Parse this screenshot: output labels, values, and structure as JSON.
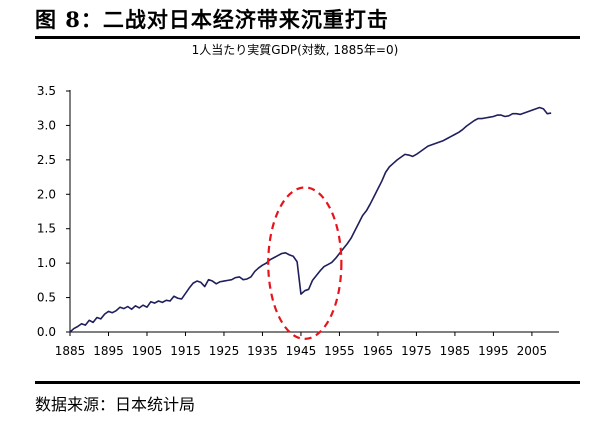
{
  "figure_title": "图 8：二战对日本经济带来沉重打击",
  "source": "数据来源：日本统计局",
  "colors": {
    "line": "#1f1f5c",
    "axis": "#000000",
    "highlight": "#e8141c"
  },
  "chart_data": {
    "type": "line",
    "title": "1人当たり実質GDP(対数, 1885年=0)",
    "xlabel": "",
    "ylabel": "",
    "xlim": [
      1885,
      2011
    ],
    "ylim": [
      0,
      3.5
    ],
    "x_ticks": [
      1885,
      1895,
      1905,
      1915,
      1925,
      1935,
      1945,
      1955,
      1965,
      1975,
      1985,
      1995,
      2005
    ],
    "y_ticks": [
      "0.0",
      "0.5",
      "1.0",
      "1.5",
      "2.0",
      "2.5",
      "3.0",
      "3.5"
    ],
    "grid": false,
    "annotation": {
      "type": "dashed-ellipse",
      "around_years": "1937-1955",
      "color": "red"
    },
    "series": [
      {
        "x": [
          1885,
          1886,
          1887,
          1888,
          1889,
          1890,
          1891,
          1892,
          1893,
          1894,
          1895,
          1896,
          1897,
          1898,
          1899,
          1900,
          1901,
          1902,
          1903,
          1904,
          1905,
          1906,
          1907,
          1908,
          1909,
          1910,
          1911,
          1912,
          1913,
          1914,
          1915,
          1916,
          1917,
          1918,
          1919,
          1920,
          1921,
          1922,
          1923,
          1924,
          1925,
          1926,
          1927,
          1928,
          1929,
          1930,
          1931,
          1932,
          1933,
          1934,
          1935,
          1936,
          1937,
          1938,
          1939,
          1940,
          1941,
          1942,
          1943,
          1944,
          1945,
          1946,
          1947,
          1948,
          1949,
          1950,
          1951,
          1952,
          1953,
          1954,
          1955,
          1956,
          1957,
          1958,
          1959,
          1960,
          1961,
          1962,
          1963,
          1964,
          1965,
          1966,
          1967,
          1968,
          1969,
          1970,
          1971,
          1972,
          1973,
          1974,
          1975,
          1976,
          1977,
          1978,
          1979,
          1980,
          1981,
          1982,
          1983,
          1984,
          1985,
          1986,
          1987,
          1988,
          1989,
          1990,
          1991,
          1992,
          1993,
          1994,
          1995,
          1996,
          1997,
          1998,
          1999,
          2000,
          2001,
          2002,
          2003,
          2004,
          2005,
          2006,
          2007,
          2008,
          2009,
          2010
        ],
        "values": [
          0.0,
          0.05,
          0.08,
          0.12,
          0.1,
          0.17,
          0.14,
          0.21,
          0.19,
          0.26,
          0.3,
          0.28,
          0.31,
          0.36,
          0.34,
          0.37,
          0.33,
          0.38,
          0.35,
          0.39,
          0.36,
          0.44,
          0.42,
          0.45,
          0.43,
          0.46,
          0.45,
          0.52,
          0.49,
          0.48,
          0.56,
          0.64,
          0.71,
          0.74,
          0.72,
          0.66,
          0.76,
          0.74,
          0.7,
          0.73,
          0.74,
          0.75,
          0.76,
          0.79,
          0.8,
          0.76,
          0.77,
          0.8,
          0.88,
          0.93,
          0.97,
          1.0,
          1.05,
          1.08,
          1.11,
          1.14,
          1.15,
          1.12,
          1.1,
          1.02,
          0.55,
          0.6,
          0.62,
          0.75,
          0.82,
          0.89,
          0.95,
          0.98,
          1.01,
          1.07,
          1.14,
          1.21,
          1.28,
          1.36,
          1.47,
          1.58,
          1.69,
          1.76,
          1.86,
          1.97,
          2.08,
          2.19,
          2.32,
          2.4,
          2.45,
          2.5,
          2.54,
          2.58,
          2.57,
          2.55,
          2.58,
          2.62,
          2.66,
          2.7,
          2.72,
          2.74,
          2.76,
          2.78,
          2.81,
          2.84,
          2.87,
          2.9,
          2.94,
          2.99,
          3.03,
          3.07,
          3.1,
          3.1,
          3.11,
          3.12,
          3.13,
          3.15,
          3.15,
          3.13,
          3.14,
          3.17,
          3.17,
          3.16,
          3.18,
          3.2,
          3.22,
          3.24,
          3.26,
          3.24,
          3.17,
          3.18
        ]
      }
    ]
  }
}
